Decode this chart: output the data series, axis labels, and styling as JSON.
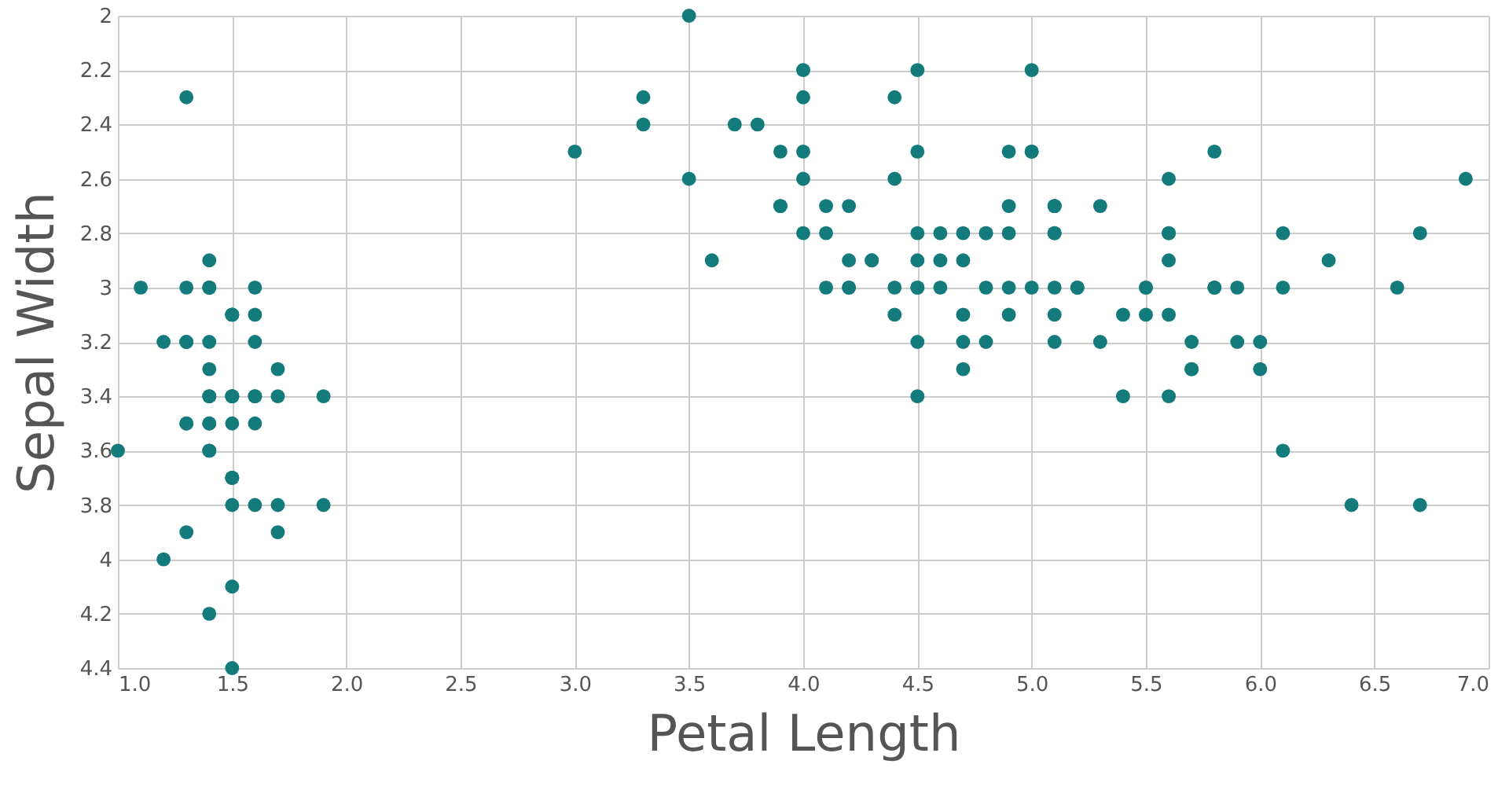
{
  "chart_data": {
    "type": "scatter",
    "xlabel": "Petal Length",
    "ylabel": "Sepal Width",
    "x": [
      1.4,
      1.4,
      1.3,
      1.5,
      1.4,
      1.7,
      1.4,
      1.5,
      1.4,
      1.5,
      1.5,
      1.6,
      1.4,
      1.1,
      1.2,
      1.5,
      1.3,
      1.4,
      1.7,
      1.5,
      1.7,
      1.5,
      1.0,
      1.7,
      1.9,
      1.6,
      1.6,
      1.5,
      1.4,
      1.6,
      1.6,
      1.5,
      1.5,
      1.4,
      1.5,
      1.2,
      1.3,
      1.4,
      1.3,
      1.5,
      1.3,
      1.3,
      1.3,
      1.6,
      1.9,
      1.4,
      1.6,
      1.4,
      1.5,
      1.4,
      4.7,
      4.5,
      4.9,
      4.0,
      4.6,
      4.5,
      4.7,
      3.3,
      4.6,
      3.9,
      3.5,
      4.2,
      4.0,
      4.7,
      3.6,
      4.4,
      4.5,
      4.1,
      4.5,
      3.9,
      4.8,
      4.0,
      4.9,
      4.7,
      4.3,
      4.4,
      4.8,
      5.0,
      4.5,
      3.5,
      3.8,
      3.7,
      3.9,
      5.1,
      4.5,
      4.5,
      4.7,
      4.4,
      4.1,
      4.0,
      4.4,
      4.6,
      4.0,
      3.3,
      4.2,
      4.2,
      4.2,
      4.3,
      3.0,
      4.1,
      6.0,
      5.1,
      5.9,
      5.6,
      5.8,
      6.6,
      4.5,
      6.3,
      5.8,
      6.1,
      5.1,
      5.3,
      5.5,
      5.0,
      5.1,
      5.3,
      5.5,
      6.7,
      6.9,
      5.0,
      5.7,
      4.9,
      6.7,
      4.9,
      5.7,
      6.0,
      4.8,
      4.9,
      5.6,
      5.8,
      6.1,
      6.4,
      5.6,
      5.1,
      5.6,
      6.1,
      5.6,
      5.5,
      4.8,
      5.4,
      5.6,
      5.1,
      5.1,
      5.9,
      5.7,
      5.2,
      5.0,
      5.2,
      5.4,
      5.1
    ],
    "series": [
      {
        "color": "#137b7b",
        "values": [
          3.5,
          3.0,
          3.2,
          3.1,
          3.6,
          3.9,
          3.4,
          3.4,
          2.9,
          3.1,
          3.7,
          3.4,
          3.0,
          3.0,
          4.0,
          4.4,
          3.9,
          3.5,
          3.8,
          3.8,
          3.4,
          3.7,
          3.6,
          3.3,
          3.4,
          3.0,
          3.4,
          3.5,
          3.4,
          3.2,
          3.1,
          3.4,
          4.1,
          4.2,
          3.1,
          3.2,
          3.5,
          3.6,
          3.0,
          3.4,
          3.5,
          2.3,
          3.2,
          3.5,
          3.8,
          3.0,
          3.8,
          3.2,
          3.7,
          3.3,
          3.2,
          3.2,
          3.1,
          2.3,
          2.8,
          2.8,
          3.3,
          2.4,
          2.9,
          2.7,
          2.0,
          3.0,
          2.2,
          2.9,
          2.9,
          3.1,
          3.0,
          2.7,
          2.2,
          2.5,
          3.2,
          2.8,
          2.5,
          2.8,
          2.9,
          3.0,
          2.8,
          3.0,
          2.9,
          2.6,
          2.4,
          2.4,
          2.7,
          2.7,
          3.0,
          3.4,
          3.1,
          2.3,
          3.0,
          2.5,
          2.6,
          3.0,
          2.6,
          2.3,
          2.7,
          3.0,
          2.9,
          2.9,
          2.5,
          2.8,
          3.3,
          2.7,
          3.0,
          2.9,
          3.0,
          3.0,
          2.5,
          2.9,
          2.5,
          3.6,
          3.2,
          2.7,
          3.0,
          2.5,
          2.8,
          3.2,
          3.0,
          3.8,
          2.6,
          2.2,
          3.2,
          2.8,
          2.8,
          2.7,
          3.3,
          3.2,
          2.8,
          3.0,
          2.8,
          3.0,
          2.8,
          3.8,
          2.8,
          2.8,
          2.6,
          3.0,
          3.4,
          3.1,
          3.0,
          3.1,
          3.1,
          3.1,
          2.7,
          3.2,
          3.3,
          3.0,
          2.5,
          3.0,
          3.4,
          3.0
        ]
      }
    ],
    "xlim": [
      1,
      7
    ],
    "xticks": [
      {
        "value": 1,
        "label": "1.0"
      },
      1.5,
      {
        "value": 2,
        "label": "2.0"
      },
      2.5,
      {
        "value": 3,
        "label": "3.0"
      },
      3.5,
      {
        "value": 4,
        "label": "4.0"
      },
      4.5,
      {
        "value": 5,
        "label": "5.0"
      },
      5.5,
      {
        "value": 6,
        "label": "6.0"
      },
      6.5,
      {
        "value": 7,
        "label": "7.0"
      }
    ],
    "ylim": [
      4.4,
      2
    ],
    "yticks": [
      2,
      2.2,
      2.4,
      2.6,
      2.8,
      3,
      3.2,
      3.4,
      3.6,
      3.8,
      4,
      4.2,
      4.4
    ],
    "grid": true,
    "marker": "circle"
  }
}
